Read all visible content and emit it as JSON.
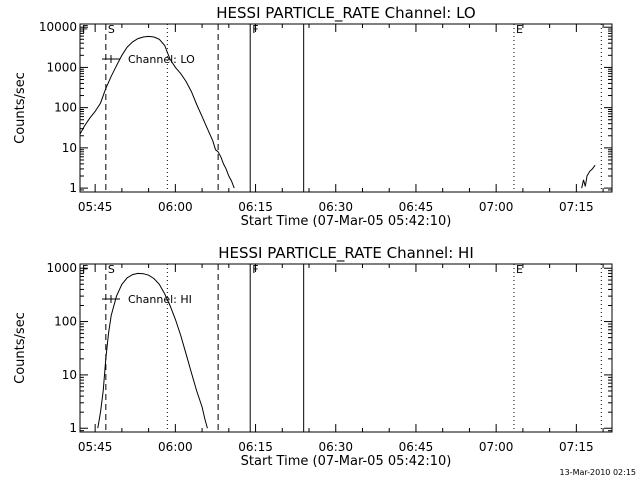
{
  "figure": {
    "timestamp": "13-Mar-2010 02:15"
  },
  "chart_data": [
    {
      "type": "line",
      "title": "HESSI PARTICLE_RATE Channel: LO",
      "xlabel": "Start Time (07-Mar-05 05:42:10)",
      "ylabel": "Counts/sec",
      "yscale": "log",
      "xlim": [
        "05:42:10",
        "07:21:40"
      ],
      "ylim": [
        0.8,
        12000
      ],
      "xticks": [
        "05:45",
        "06:00",
        "06:15",
        "06:30",
        "06:45",
        "07:00",
        "07:15"
      ],
      "yticks": [
        {
          "value": 1,
          "label": "1"
        },
        {
          "value": 10,
          "label": "10"
        },
        {
          "value": 100,
          "label": "100"
        },
        {
          "value": 1000,
          "label": "1000"
        },
        {
          "value": 10000,
          "label": "10000"
        }
      ],
      "legend": {
        "label": "Channel: LO",
        "position": "top-left"
      },
      "series": [
        {
          "name": "Channel: LO",
          "segments": [
            [
              [
                "05:42:10",
                22
              ],
              [
                "05:43:00",
                35
              ],
              [
                "05:44:00",
                55
              ],
              [
                "05:45:00",
                80
              ],
              [
                "05:46:00",
                130
              ],
              [
                "05:47:00",
                300
              ],
              [
                "05:48:00",
                600
              ],
              [
                "05:49:00",
                1100
              ],
              [
                "05:50:00",
                2000
              ],
              [
                "05:51:00",
                3200
              ],
              [
                "05:52:00",
                4300
              ],
              [
                "05:53:00",
                5200
              ],
              [
                "05:54:00",
                5700
              ],
              [
                "05:55:00",
                5900
              ],
              [
                "05:56:00",
                5700
              ],
              [
                "05:57:00",
                5000
              ],
              [
                "05:58:00",
                3500
              ],
              [
                "05:59:00",
                1600
              ],
              [
                "06:00:00",
                1000
              ],
              [
                "06:01:00",
                700
              ],
              [
                "06:02:00",
                450
              ],
              [
                "06:03:00",
                250
              ],
              [
                "06:04:00",
                120
              ],
              [
                "06:05:00",
                60
              ],
              [
                "06:06:00",
                30
              ],
              [
                "06:07:00",
                15
              ],
              [
                "06:07:30",
                9
              ],
              [
                "06:08:00",
                8
              ],
              [
                "06:08:30",
                6
              ],
              [
                "06:09:00",
                4
              ],
              [
                "06:09:30",
                3
              ],
              [
                "06:10:00",
                2
              ],
              [
                "06:10:30",
                1.5
              ],
              [
                "06:11:00",
                1
              ]
            ],
            [
              [
                "07:16:00",
                1
              ],
              [
                "07:16:20",
                1.6
              ],
              [
                "07:16:40",
                1.1
              ],
              [
                "07:17:00",
                2
              ],
              [
                "07:17:30",
                2.6
              ],
              [
                "07:18:00",
                3
              ],
              [
                "07:18:30",
                3.7
              ]
            ]
          ]
        }
      ],
      "markers": [
        {
          "time": "05:42:10",
          "label": "F",
          "style": "none"
        },
        {
          "time": "05:47:00",
          "label": "S",
          "style": "dashed"
        },
        {
          "time": "05:58:30",
          "label": "",
          "style": "dotted"
        },
        {
          "time": "06:08:00",
          "label": "",
          "style": "dashed"
        },
        {
          "time": "06:14:00",
          "label": "F",
          "style": "solid"
        },
        {
          "time": "06:24:00",
          "label": "",
          "style": "solid"
        },
        {
          "time": "07:03:20",
          "label": "E",
          "style": "dotted"
        },
        {
          "time": "07:19:40",
          "label": "",
          "style": "dotted"
        }
      ]
    },
    {
      "type": "line",
      "title": "HESSI PARTICLE_RATE Channel: HI",
      "xlabel": "Start Time (07-Mar-05 05:42:10)",
      "ylabel": "Counts/sec",
      "yscale": "log",
      "xlim": [
        "05:42:10",
        "07:21:40"
      ],
      "ylim": [
        0.85,
        1200
      ],
      "xticks": [
        "05:45",
        "06:00",
        "06:15",
        "06:30",
        "06:45",
        "07:00",
        "07:15"
      ],
      "yticks": [
        {
          "value": 1,
          "label": "1"
        },
        {
          "value": 10,
          "label": "10"
        },
        {
          "value": 100,
          "label": "100"
        },
        {
          "value": 1000,
          "label": "1000"
        }
      ],
      "legend": {
        "label": "Channel: HI",
        "position": "top-left"
      },
      "series": [
        {
          "name": "Channel: HI",
          "segments": [
            [
              [
                "05:45:30",
                1
              ],
              [
                "05:46:00",
                2
              ],
              [
                "05:46:30",
                5
              ],
              [
                "05:47:00",
                20
              ],
              [
                "05:47:30",
                60
              ],
              [
                "05:48:00",
                130
              ],
              [
                "05:49:00",
                300
              ],
              [
                "05:50:00",
                500
              ],
              [
                "05:51:00",
                660
              ],
              [
                "05:52:00",
                760
              ],
              [
                "05:53:00",
                800
              ],
              [
                "05:54:00",
                790
              ],
              [
                "05:55:00",
                740
              ],
              [
                "05:56:00",
                640
              ],
              [
                "05:57:00",
                500
              ],
              [
                "05:58:00",
                330
              ],
              [
                "05:59:00",
                200
              ],
              [
                "06:00:00",
                110
              ],
              [
                "06:01:00",
                55
              ],
              [
                "06:02:00",
                25
              ],
              [
                "06:03:00",
                11
              ],
              [
                "06:04:00",
                5
              ],
              [
                "06:05:00",
                2.5
              ],
              [
                "06:05:30",
                1.5
              ],
              [
                "06:06:00",
                1
              ]
            ]
          ]
        }
      ],
      "markers": [
        {
          "time": "05:42:10",
          "label": "F",
          "style": "none"
        },
        {
          "time": "05:47:00",
          "label": "S",
          "style": "dashed"
        },
        {
          "time": "05:58:30",
          "label": "",
          "style": "dotted"
        },
        {
          "time": "06:08:00",
          "label": "",
          "style": "dashed"
        },
        {
          "time": "06:14:00",
          "label": "F",
          "style": "solid"
        },
        {
          "time": "06:24:00",
          "label": "",
          "style": "solid"
        },
        {
          "time": "07:03:20",
          "label": "E",
          "style": "dotted"
        },
        {
          "time": "07:19:40",
          "label": "",
          "style": "dotted"
        }
      ]
    }
  ]
}
